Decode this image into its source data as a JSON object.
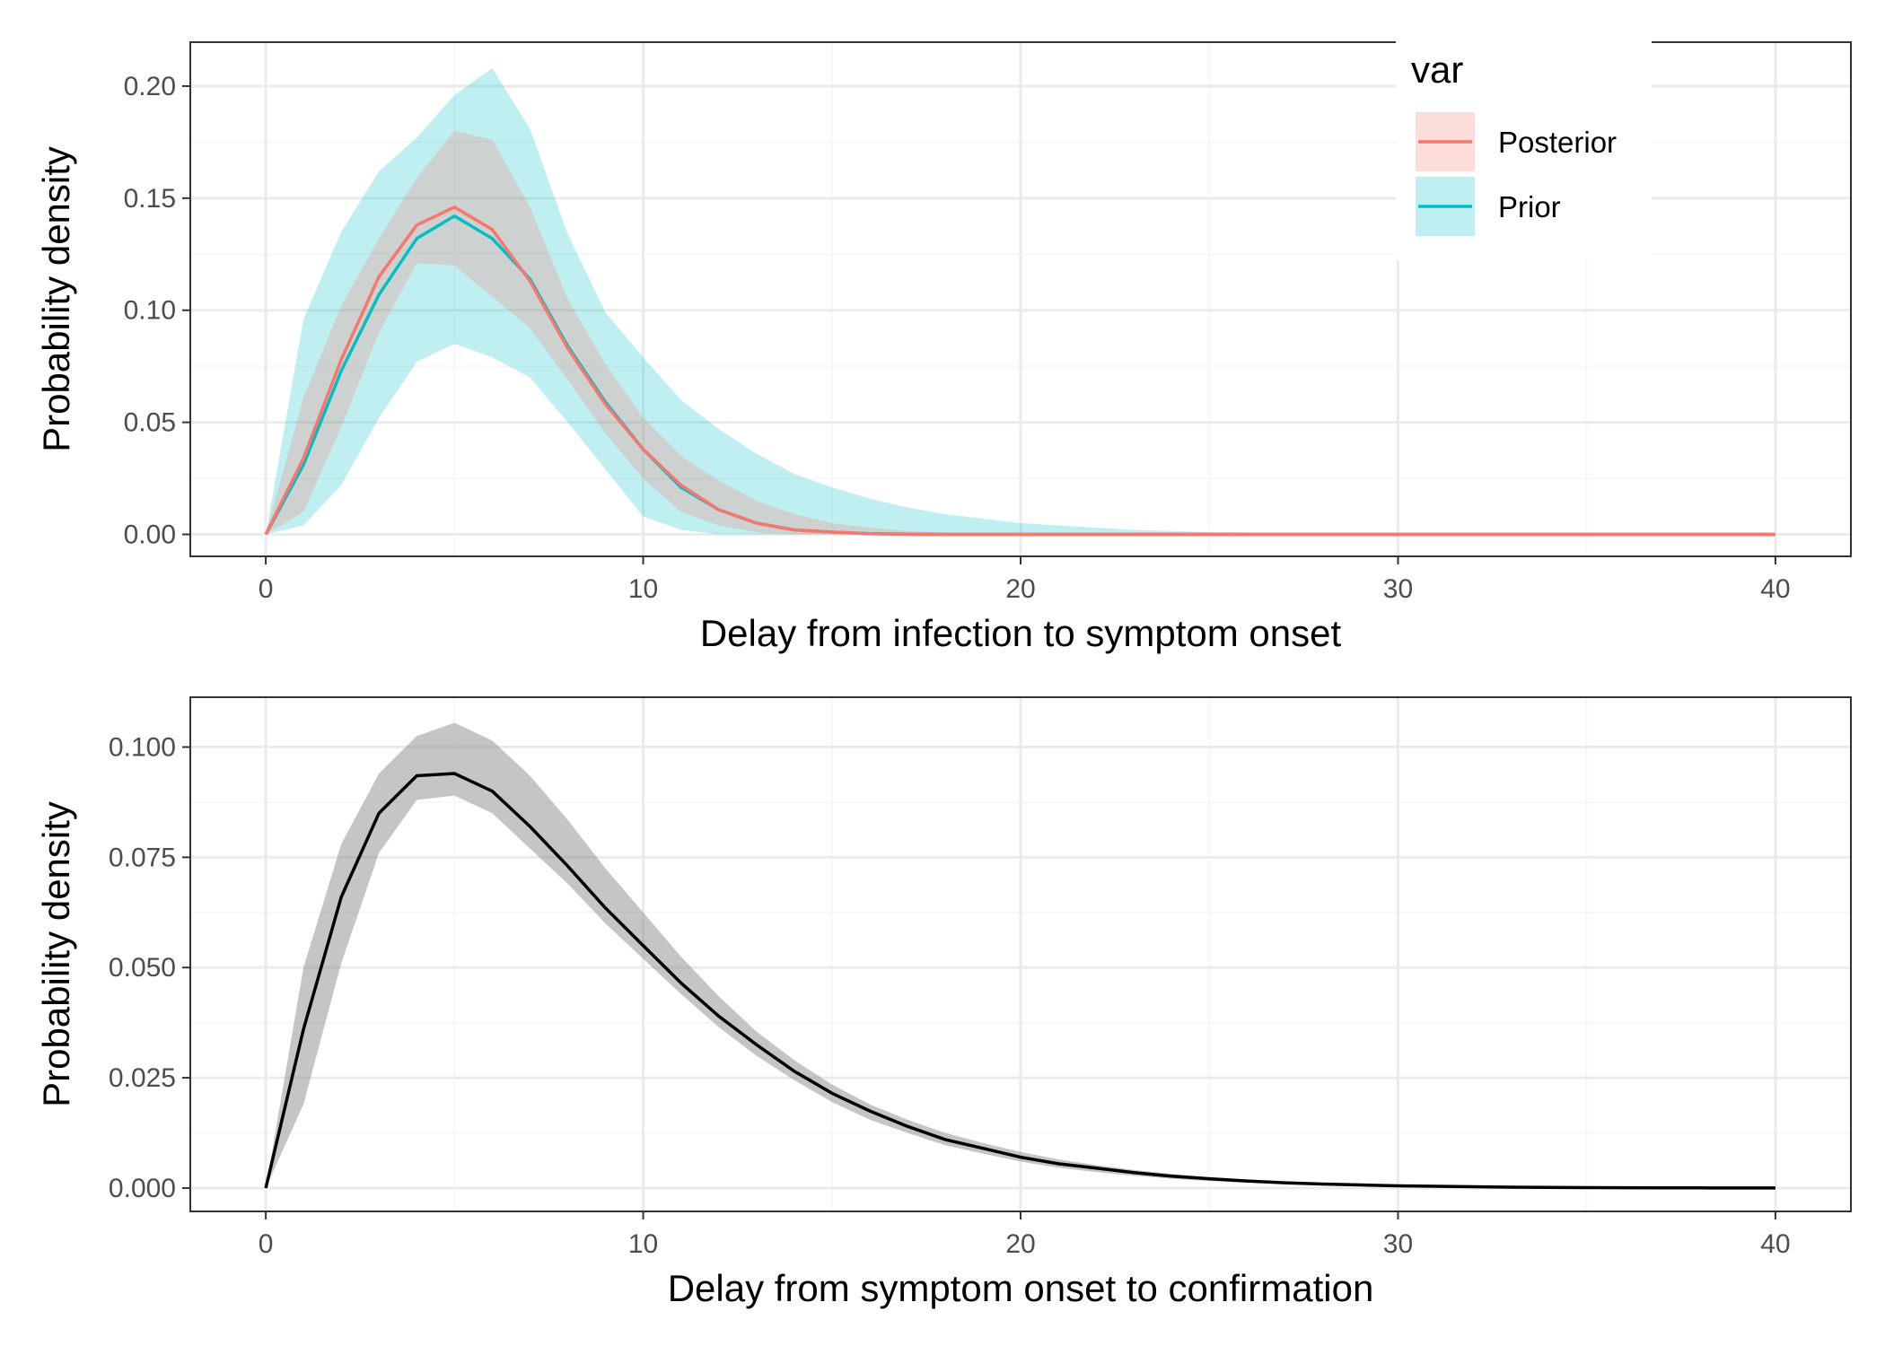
{
  "colors": {
    "posterior": "#f8766d",
    "prior": "#00bfc4",
    "band_grey": "#8c8c8c",
    "line_black": "#000000",
    "grid_major": "#ebebeb",
    "grid_minor": "#f5f5f5",
    "panel_border": "#333333",
    "tick_text": "#4d4d4d"
  },
  "chart_data": [
    {
      "type": "line",
      "xlabel": "Delay from infection to symptom onset",
      "ylabel": "Probability density",
      "xlim": [
        -2,
        42
      ],
      "ylim": [
        -0.0098,
        0.2196
      ],
      "x_ticks": [
        0,
        10,
        20,
        30,
        40
      ],
      "x_tick_labels": [
        "0",
        "10",
        "20",
        "30",
        "40"
      ],
      "y_ticks": [
        0,
        0.05,
        0.1,
        0.15,
        0.2
      ],
      "y_tick_labels": [
        "0.00",
        "0.05",
        "0.10",
        "0.15",
        "0.20"
      ],
      "grid": true,
      "legend": {
        "title": "var",
        "position": "top-right",
        "entries": [
          "Posterior",
          "Prior"
        ]
      },
      "x": [
        0,
        1,
        2,
        3,
        4,
        5,
        6,
        7,
        8,
        9,
        10,
        11,
        12,
        13,
        14,
        15,
        16,
        17,
        18,
        19,
        20,
        21,
        22,
        23,
        24,
        25,
        26,
        27,
        28,
        29,
        30,
        31,
        32,
        33,
        34,
        35,
        36,
        37,
        38,
        39,
        40
      ],
      "series": [
        {
          "name": "Prior",
          "color": "#00bfc4",
          "values": [
            0,
            0.031,
            0.073,
            0.107,
            0.132,
            0.142,
            0.132,
            0.114,
            0.084,
            0.059,
            0.038,
            0.021,
            0.011,
            0.005,
            0.002,
            0.001,
            0.0003,
            0.0001,
            0,
            0,
            0,
            0,
            0,
            0,
            0,
            0,
            0,
            0,
            0,
            0,
            0,
            0,
            0,
            0,
            0,
            0,
            0,
            0,
            0,
            0,
            0
          ],
          "lower": [
            0,
            0.004,
            0.022,
            0.052,
            0.077,
            0.085,
            0.079,
            0.07,
            0.05,
            0.029,
            0.008,
            0.002,
            0,
            0,
            0,
            0,
            0,
            0,
            0,
            0,
            0,
            0,
            0,
            0,
            0,
            0,
            0,
            0,
            0,
            0,
            0,
            0,
            0,
            0,
            0,
            0,
            0,
            0,
            0,
            0,
            0
          ],
          "upper": [
            0,
            0.096,
            0.135,
            0.162,
            0.177,
            0.196,
            0.208,
            0.181,
            0.134,
            0.099,
            0.079,
            0.06,
            0.047,
            0.036,
            0.027,
            0.021,
            0.016,
            0.012,
            0.009,
            0.007,
            0.005,
            0.004,
            0.003,
            0.002,
            0.0015,
            0.001,
            0.0008,
            0.0006,
            0.0004,
            0.0003,
            0.0002,
            0.0001,
            0,
            0,
            0,
            0,
            0,
            0,
            0,
            0,
            0
          ]
        },
        {
          "name": "Posterior",
          "color": "#f8766d",
          "values": [
            0,
            0.034,
            0.078,
            0.115,
            0.138,
            0.146,
            0.136,
            0.113,
            0.083,
            0.058,
            0.038,
            0.022,
            0.011,
            0.005,
            0.002,
            0.001,
            0.0003,
            0.0001,
            0,
            0,
            0,
            0,
            0,
            0,
            0,
            0,
            0,
            0,
            0,
            0,
            0,
            0,
            0,
            0,
            0,
            0,
            0,
            0,
            0,
            0,
            0
          ],
          "lower": [
            0,
            0.01,
            0.048,
            0.09,
            0.121,
            0.12,
            0.106,
            0.092,
            0.069,
            0.045,
            0.025,
            0.01,
            0.004,
            0.001,
            0,
            0,
            0,
            0,
            0,
            0,
            0,
            0,
            0,
            0,
            0,
            0,
            0,
            0,
            0,
            0,
            0,
            0,
            0,
            0,
            0,
            0,
            0,
            0,
            0,
            0,
            0
          ],
          "upper": [
            0,
            0.061,
            0.102,
            0.132,
            0.159,
            0.18,
            0.176,
            0.146,
            0.105,
            0.076,
            0.052,
            0.035,
            0.024,
            0.015,
            0.009,
            0.005,
            0.003,
            0.0015,
            0.0007,
            0.0003,
            0.0001,
            0,
            0,
            0,
            0,
            0,
            0,
            0,
            0,
            0,
            0,
            0,
            0,
            0,
            0,
            0,
            0,
            0,
            0,
            0,
            0
          ]
        }
      ]
    },
    {
      "type": "line",
      "xlabel": "Delay from symptom onset to confirmation",
      "ylabel": "Probability density",
      "xlim": [
        -2,
        42
      ],
      "ylim": [
        -0.0053,
        0.1113
      ],
      "x_ticks": [
        0,
        10,
        20,
        30,
        40
      ],
      "x_tick_labels": [
        "0",
        "10",
        "20",
        "30",
        "40"
      ],
      "y_ticks": [
        0,
        0.025,
        0.05,
        0.075,
        0.1
      ],
      "y_tick_labels": [
        "0.000",
        "0.025",
        "0.050",
        "0.075",
        "0.100"
      ],
      "grid": true,
      "x": [
        0,
        1,
        2,
        3,
        4,
        5,
        6,
        7,
        8,
        9,
        10,
        11,
        12,
        13,
        14,
        15,
        16,
        17,
        18,
        19,
        20,
        21,
        22,
        23,
        24,
        25,
        26,
        27,
        28,
        29,
        30,
        31,
        32,
        33,
        34,
        35,
        36,
        37,
        38,
        39,
        40
      ],
      "series": [
        {
          "color": "#000000",
          "values": [
            0,
            0.036,
            0.066,
            0.085,
            0.0935,
            0.094,
            0.09,
            0.082,
            0.073,
            0.0635,
            0.055,
            0.0465,
            0.039,
            0.0325,
            0.0265,
            0.0215,
            0.0175,
            0.014,
            0.011,
            0.009,
            0.007,
            0.0055,
            0.0045,
            0.0035,
            0.0027,
            0.0021,
            0.0016,
            0.0012,
            0.0009,
            0.0007,
            0.0005,
            0.0004,
            0.0003,
            0.0002,
            0.00015,
            0.0001,
            8e-05,
            5e-05,
            3e-05,
            2e-05,
            1e-05
          ],
          "lower": [
            0,
            0.019,
            0.051,
            0.076,
            0.088,
            0.089,
            0.085,
            0.077,
            0.069,
            0.06,
            0.052,
            0.044,
            0.0365,
            0.03,
            0.0245,
            0.0195,
            0.0155,
            0.0125,
            0.0097,
            0.0078,
            0.006,
            0.0046,
            0.0036,
            0.0028,
            0.0021,
            0.0016,
            0.0012,
            0.0009,
            0.0006,
            0.0005,
            0.0003,
            0.0002,
            0.00015,
            0.0001,
            7e-05,
            5e-05,
            3e-05,
            2e-05,
            1e-05,
            0,
            0
          ],
          "upper": [
            0,
            0.05,
            0.078,
            0.094,
            0.1025,
            0.1055,
            0.1015,
            0.0935,
            0.0835,
            0.0725,
            0.0625,
            0.0525,
            0.0435,
            0.0355,
            0.029,
            0.0235,
            0.019,
            0.0155,
            0.0125,
            0.0102,
            0.0082,
            0.0065,
            0.0052,
            0.0041,
            0.0032,
            0.0025,
            0.0019,
            0.0015,
            0.0011,
            0.0009,
            0.0007,
            0.0005,
            0.0004,
            0.0003,
            0.0002,
            0.00015,
            0.0001,
            8e-05,
            5e-05,
            3e-05,
            2e-05
          ]
        }
      ]
    }
  ]
}
